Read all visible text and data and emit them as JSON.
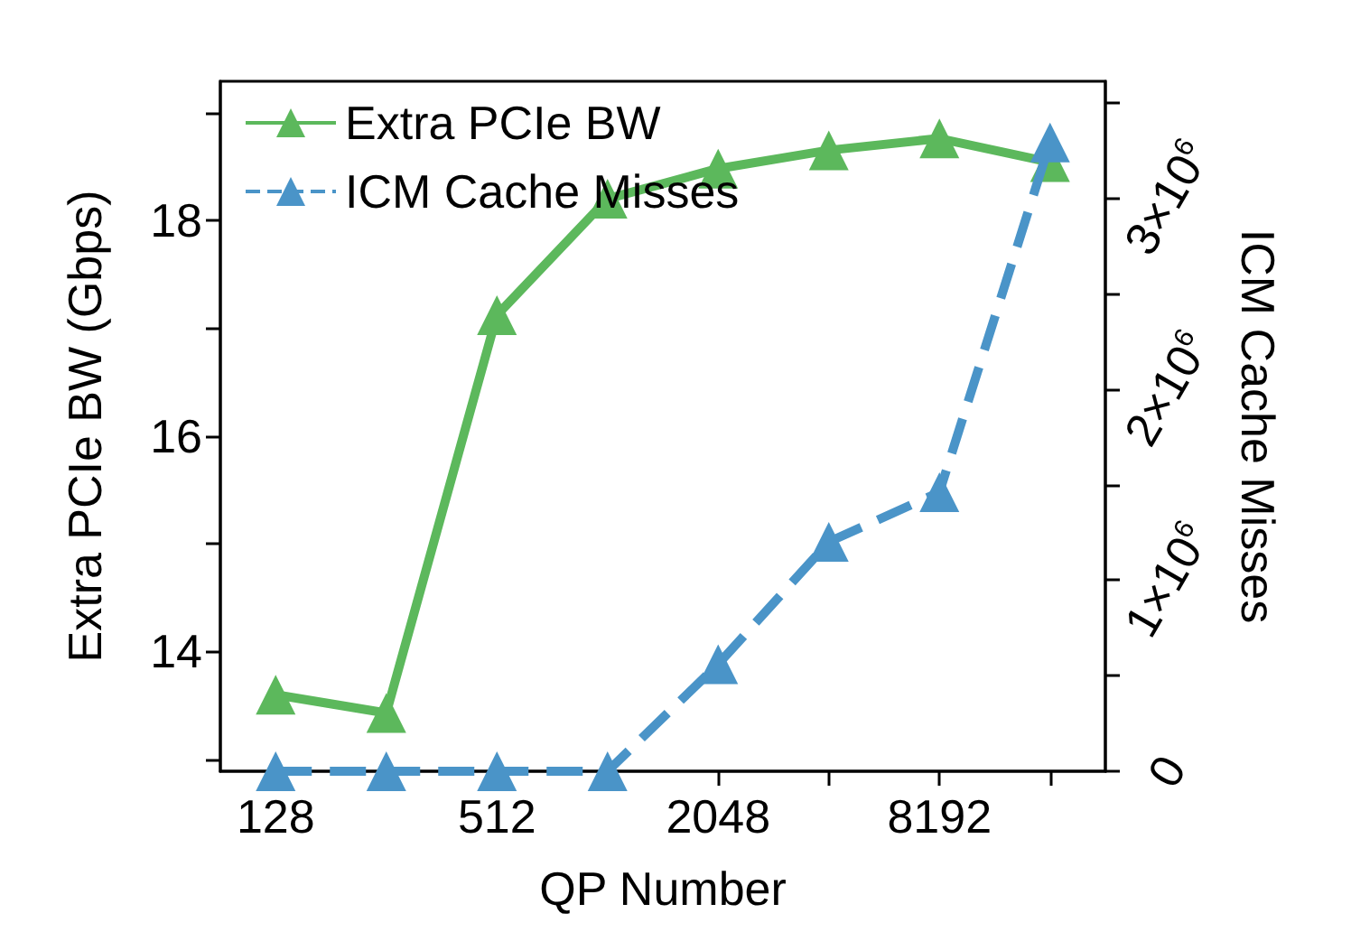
{
  "chart_data": {
    "type": "line",
    "xlabel": "QP Number",
    "ylabel": "Extra PCIe BW (Gbps)",
    "y2label": "ICM Cache Misses",
    "categories": [
      "128",
      null,
      "512",
      null,
      "2048",
      null,
      "8192",
      null
    ],
    "series": [
      {
        "name": "Extra PCIe BW",
        "color": "#5cb85c",
        "values": [
          13.6,
          13.43,
          17.12,
          18.2,
          18.48,
          18.65,
          18.76,
          18.54
        ],
        "line_style": "solid"
      },
      {
        "name": "ICM Cache Misses",
        "color": "#4a94c8",
        "axis": "y2",
        "values": [
          0,
          0,
          0,
          0,
          560000,
          1200000,
          1460000,
          3290000
        ],
        "line_style": "dashed"
      }
    ],
    "ylim": [
      12.89,
      19.29
    ],
    "yticks": [
      {
        "value": 13,
        "label": null
      },
      14,
      {
        "value": 15,
        "label": null
      },
      16,
      {
        "value": 17,
        "label": null
      },
      18,
      {
        "value": 19,
        "label": null
      }
    ],
    "y2lim": [
      0,
      3610000
    ],
    "y2ticks": [
      {
        "value": 0,
        "label": "0"
      },
      {
        "value": 500000,
        "label": null
      },
      {
        "value": 1000000,
        "label": "1×10$^{6}$"
      },
      {
        "value": 1500000,
        "label": null
      },
      {
        "value": 2000000,
        "label": "2×10$^{6}$"
      },
      {
        "value": 2500000,
        "label": null
      },
      {
        "value": 3000000,
        "label": "3×10$^{6}$"
      },
      {
        "value": 3500000,
        "label": null
      }
    ],
    "marker": "triangle",
    "legend": "top left",
    "grid": false
  }
}
